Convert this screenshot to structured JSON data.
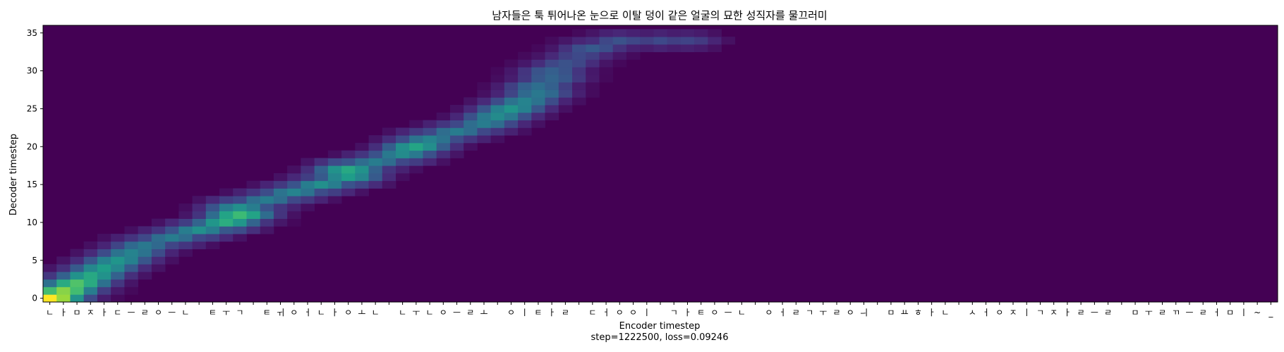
{
  "chart_data": {
    "type": "heatmap",
    "title": "남자들은 툭 튀어나온 눈으로 이탈 덩이 같은 얼굴의 묘한 성직자를 물끄러미",
    "xlabel": "Encoder timestep",
    "ylabel": "Decoder timestep",
    "footer": "step=1222500, loss=0.09246",
    "colormap": "viridis",
    "background_color": "#440154",
    "x_ticks": [
      "ㄴ",
      "ㅏ",
      "ㅁ",
      "ㅈ",
      "ㅏ",
      "ㄷ",
      "ㅡ",
      "ㄹ",
      "ㅇ",
      "ㅡ",
      "ㄴ",
      " ",
      "ㅌ",
      "ㅜ",
      "ㄱ",
      " ",
      "ㅌ",
      "ㅟ",
      "ㅇ",
      "ㅓ",
      "ㄴ",
      "ㅏ",
      "ㅇ",
      "ㅗ",
      "ㄴ",
      " ",
      "ㄴ",
      "ㅜ",
      "ㄴ",
      "ㅇ",
      "ㅡ",
      "ㄹ",
      "ㅗ",
      " ",
      "ㅇ",
      "ㅣ",
      "ㅌ",
      "ㅏ",
      "ㄹ",
      " ",
      "ㄷ",
      "ㅓ",
      "ㅇ",
      "ㅇ",
      "ㅣ",
      " ",
      "ㄱ",
      "ㅏ",
      "ㅌ",
      "ㅇ",
      "ㅡ",
      "ㄴ",
      " ",
      "ㅇ",
      "ㅓ",
      "ㄹ",
      "ㄱ",
      "ㅜ",
      "ㄹ",
      "ㅇ",
      "ㅢ",
      " ",
      "ㅁ",
      "ㅛ",
      "ㅎ",
      "ㅏ",
      "ㄴ",
      " ",
      "ㅅ",
      "ㅓ",
      "ㅇ",
      "ㅈ",
      "ㅣ",
      "ㄱ",
      "ㅈ",
      "ㅏ",
      "ㄹ",
      "ㅡ",
      "ㄹ",
      " ",
      "ㅁ",
      "ㅜ",
      "ㄹ",
      "ㄲ",
      "ㅡ",
      "ㄹ",
      "ㅓ",
      "ㅁ",
      "ㅣ",
      "~",
      "_"
    ],
    "y_range": [
      0,
      35
    ],
    "y_ticks": [
      0,
      5,
      10,
      15,
      20,
      25,
      30,
      35
    ],
    "peaks": [
      [
        0,
        0,
        1.0
      ],
      [
        1,
        1,
        0.82
      ],
      [
        2,
        2,
        0.72
      ],
      [
        3,
        3,
        0.6
      ],
      [
        4,
        4,
        0.55
      ],
      [
        5,
        5,
        0.52
      ],
      [
        6,
        6,
        0.45
      ],
      [
        7,
        7,
        0.4
      ],
      [
        9,
        8,
        0.42
      ],
      [
        11,
        9,
        0.5
      ],
      [
        13,
        10,
        0.62
      ],
      [
        14,
        11,
        0.68
      ],
      [
        14,
        12,
        0.5
      ],
      [
        16,
        13,
        0.42
      ],
      [
        18,
        14,
        0.45
      ],
      [
        20,
        15,
        0.5
      ],
      [
        22,
        16,
        0.55
      ],
      [
        22,
        17,
        0.6
      ],
      [
        24,
        18,
        0.42
      ],
      [
        26,
        19,
        0.48
      ],
      [
        27,
        20,
        0.58
      ],
      [
        28,
        21,
        0.45
      ],
      [
        30,
        22,
        0.42
      ],
      [
        32,
        23,
        0.42
      ],
      [
        33,
        24,
        0.48
      ],
      [
        34,
        25,
        0.52
      ],
      [
        35,
        26,
        0.45
      ],
      [
        36,
        27,
        0.4
      ],
      [
        36,
        28,
        0.36
      ],
      [
        37,
        29,
        0.32
      ],
      [
        37,
        30,
        0.3
      ],
      [
        38,
        31,
        0.25
      ],
      [
        39,
        32,
        0.22
      ],
      [
        40,
        33,
        0.28
      ],
      [
        42,
        34,
        0.25
      ],
      [
        45,
        34,
        0.22
      ],
      [
        47,
        34,
        0.2
      ]
    ]
  }
}
